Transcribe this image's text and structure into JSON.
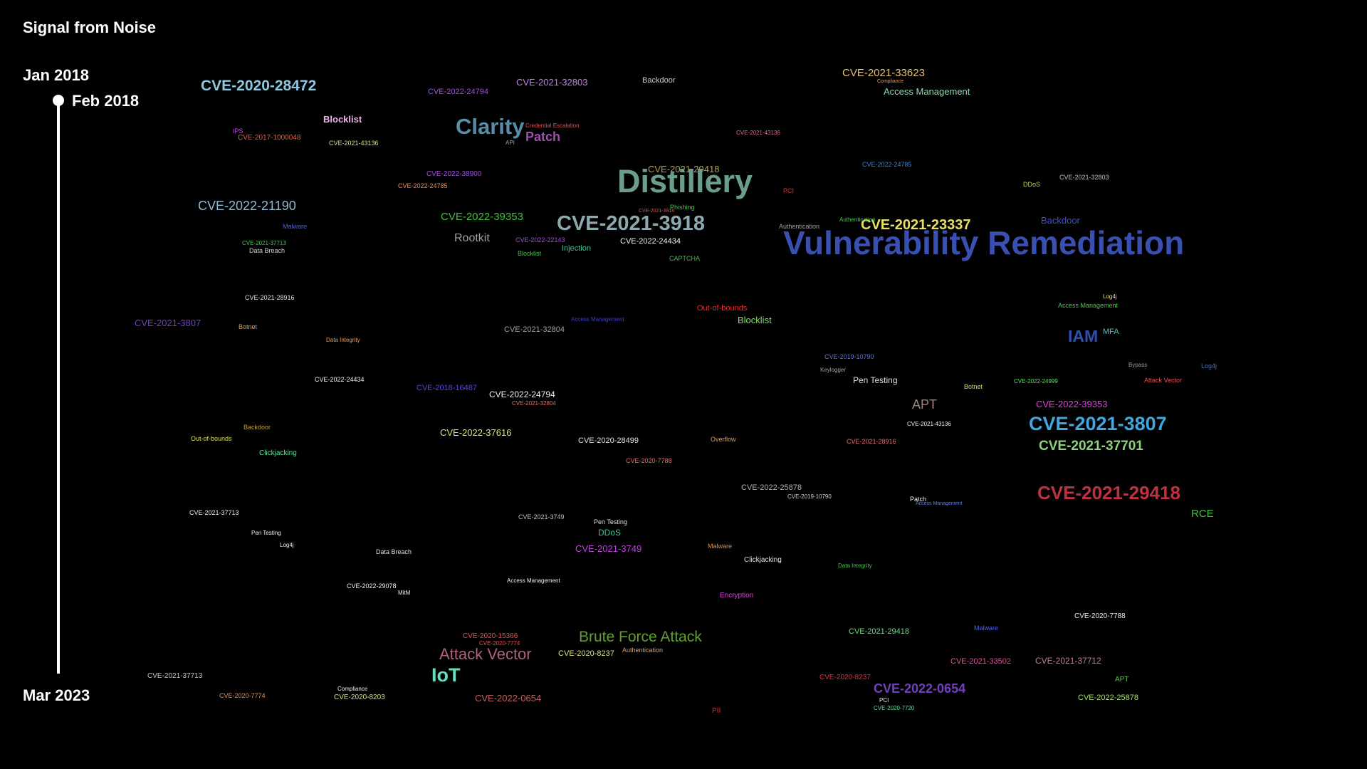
{
  "app_title": "Signal from Noise",
  "timeline": {
    "range_start": "Jan 2018",
    "selected": "Feb 2018",
    "range_end": "Mar 2023"
  },
  "terms": [
    {
      "text": "CVE-2020-28472",
      "color": "#8ec8e0"
    },
    {
      "text": "CVE-2022-24794",
      "color": "#a050e0"
    },
    {
      "text": "CVE-2021-32803",
      "color": "#c080e0"
    },
    {
      "text": "Backdoor",
      "color": "#c8c8c8"
    },
    {
      "text": "CVE-2021-33623",
      "color": "#e8c070"
    },
    {
      "text": "Access Management",
      "color": "#90d8b0"
    },
    {
      "text": "Blocklist",
      "color": "#f0b0f0"
    },
    {
      "text": "Clarity",
      "color": "#5a8ea8"
    },
    {
      "text": "Patch",
      "color": "#a050b0"
    },
    {
      "text": "Credential Escalation",
      "color": "#e05050"
    },
    {
      "text": "IPS",
      "color": "#c050e0"
    },
    {
      "text": "CVE-2017-1000048",
      "color": "#e06040"
    },
    {
      "text": "CVE-2021-43136",
      "color": "#e0e080"
    },
    {
      "text": "CVE-2021-43136",
      "color": "#e07090"
    },
    {
      "text": "CVE-2022-38900",
      "color": "#a050e0"
    },
    {
      "text": "CVE-2021-29418",
      "color": "#b0a050"
    },
    {
      "text": "Distillery",
      "color": "#6a9e8a"
    },
    {
      "text": "CVE-2022-24785",
      "color": "#e09060"
    },
    {
      "text": "CVE-2022-24785",
      "color": "#4080c0"
    },
    {
      "text": "DDoS",
      "color": "#c0d060"
    },
    {
      "text": "CVE-2021-32803",
      "color": "#c0c0c0"
    },
    {
      "text": "CVE-2022-21190",
      "color": "#90b8d0"
    },
    {
      "text": "CVE-2022-39353",
      "color": "#40c040"
    },
    {
      "text": "Phishing",
      "color": "#40c040"
    },
    {
      "text": "CVE-2021-3918",
      "color": "#8ea8b0"
    },
    {
      "text": "CVE-2021-23337",
      "color": "#e8e060"
    },
    {
      "text": "Backdoor",
      "color": "#4050c0"
    },
    {
      "text": "Vulnerability Remediation",
      "color": "#3a50b0"
    },
    {
      "text": "Malware",
      "color": "#5060c0"
    },
    {
      "text": "Rootkit",
      "color": "#a0a0a0"
    },
    {
      "text": "CVE-2022-22143",
      "color": "#a050e0"
    },
    {
      "text": "CVE-2022-24434",
      "color": "#f0f0f0"
    },
    {
      "text": "Authentication",
      "color": "#a0a0a0"
    },
    {
      "text": "CVE-2021-37713",
      "color": "#50c050"
    },
    {
      "text": "Data Breach",
      "color": "#d0d0d0"
    },
    {
      "text": "Blocklist",
      "color": "#50c050"
    },
    {
      "text": "Injection",
      "color": "#40c0a0"
    },
    {
      "text": "CAPTCHA",
      "color": "#40c040"
    },
    {
      "text": "CVE-2021-28916",
      "color": "#e0e0e0"
    },
    {
      "text": "Log4j",
      "color": "#f0e080"
    },
    {
      "text": "Access Management",
      "color": "#50c050"
    },
    {
      "text": "CVE-2021-3807",
      "color": "#7040c0"
    },
    {
      "text": "Botnet",
      "color": "#e0a060"
    },
    {
      "text": "Data Integrity",
      "color": "#e0a060"
    },
    {
      "text": "CVE-2021-32804",
      "color": "#a0a0a0"
    },
    {
      "text": "Access Management",
      "color": "#4040c0"
    },
    {
      "text": "Out-of-bounds",
      "color": "#e03030"
    },
    {
      "text": "Blocklist",
      "color": "#80e060"
    },
    {
      "text": "IAM",
      "color": "#3050b0"
    },
    {
      "text": "MFA",
      "color": "#60c0c0"
    },
    {
      "text": "Log4j",
      "color": "#5070c0"
    },
    {
      "text": "CVE-2019-10790",
      "color": "#6070e0"
    },
    {
      "text": "Keylogger",
      "color": "#a0a0a0"
    },
    {
      "text": "Pen Testing",
      "color": "#e0e0e0"
    },
    {
      "text": "Bypass",
      "color": "#a0a0a0"
    },
    {
      "text": "Attack Vector",
      "color": "#e05050"
    },
    {
      "text": "CVE-2022-24434",
      "color": "#f0f0f0"
    },
    {
      "text": "CVE-2018-16487",
      "color": "#6040e0"
    },
    {
      "text": "CVE-2022-24794",
      "color": "#f0f0f0"
    },
    {
      "text": "CVE-2021-32804",
      "color": "#e07070"
    },
    {
      "text": "Botnet",
      "color": "#c0e060"
    },
    {
      "text": "CVE-2022-24999",
      "color": "#60e060"
    },
    {
      "text": "APT",
      "color": "#a08080"
    },
    {
      "text": "CVE-2022-39353",
      "color": "#e040e0"
    },
    {
      "text": "Backdoor",
      "color": "#c0a040"
    },
    {
      "text": "Out-of-bounds",
      "color": "#e0e060"
    },
    {
      "text": "Clickjacking",
      "color": "#60e0a0"
    },
    {
      "text": "CVE-2022-37616",
      "color": "#e0e080"
    },
    {
      "text": "CVE-2020-28499",
      "color": "#e0e0e0"
    },
    {
      "text": "Overflow",
      "color": "#e0a060"
    },
    {
      "text": "CVE-2021-43136",
      "color": "#f0f0f0"
    },
    {
      "text": "CVE-2021-28916",
      "color": "#e07070"
    },
    {
      "text": "CVE-2021-3807",
      "color": "#40a8e0"
    },
    {
      "text": "CVE-2021-37701",
      "color": "#90d080"
    },
    {
      "text": "CVE-2020-7788",
      "color": "#e07070"
    },
    {
      "text": "CVE-2022-25878",
      "color": "#b0b0b0"
    },
    {
      "text": "CVE-2019-10790",
      "color": "#d0d0d0"
    },
    {
      "text": "Patch",
      "color": "#f0f0f0"
    },
    {
      "text": "Access Management",
      "color": "#6080e0"
    },
    {
      "text": "CVE-2021-29418",
      "color": "#c03040"
    },
    {
      "text": "RCE",
      "color": "#40c040"
    },
    {
      "text": "CVE-2021-37713",
      "color": "#f0f0f0"
    },
    {
      "text": "Pen Testing",
      "color": "#f0f0f0"
    },
    {
      "text": "Log4j",
      "color": "#f0f0f0"
    },
    {
      "text": "Data Breach",
      "color": "#e0e0e0"
    },
    {
      "text": "CVE-2021-3749",
      "color": "#c0c0c0"
    },
    {
      "text": "Pen Testing",
      "color": "#e0e0e0"
    },
    {
      "text": "DDoS",
      "color": "#40c0a0"
    },
    {
      "text": "CVE-2021-3749",
      "color": "#c040e0"
    },
    {
      "text": "Malware",
      "color": "#e09030"
    },
    {
      "text": "Clickjacking",
      "color": "#e0e0e0"
    },
    {
      "text": "Data Integrity",
      "color": "#50c050"
    },
    {
      "text": "CVE-2022-29078",
      "color": "#f0f0f0"
    },
    {
      "text": "MitM",
      "color": "#f0f0f0"
    },
    {
      "text": "Access Management",
      "color": "#f0f0f0"
    },
    {
      "text": "Encryption",
      "color": "#e040e0"
    },
    {
      "text": "CVE-2020-15366",
      "color": "#e05050"
    },
    {
      "text": "CVE-2020-7774",
      "color": "#e05050"
    },
    {
      "text": "Brute Force Attack",
      "color": "#60a030"
    },
    {
      "text": "Authentication",
      "color": "#e0a060"
    },
    {
      "text": "CVE-2021-29418",
      "color": "#60e080"
    },
    {
      "text": "Malware",
      "color": "#5060e0"
    },
    {
      "text": "CVE-2020-7788",
      "color": "#f0f0f0"
    },
    {
      "text": "CVE-2020-8237",
      "color": "#e0e080"
    },
    {
      "text": "Attack Vector",
      "color": "#b06080"
    },
    {
      "text": "CVE-2021-33502",
      "color": "#e050a0"
    },
    {
      "text": "CVE-2021-37712",
      "color": "#c08080"
    },
    {
      "text": "IoT",
      "color": "#60e0c0"
    },
    {
      "text": "CVE-2021-37713",
      "color": "#c0c0c0"
    },
    {
      "text": "CVE-2020-8237",
      "color": "#e03040"
    },
    {
      "text": "APT",
      "color": "#60c060"
    },
    {
      "text": "CVE-2022-0654",
      "color": "#7040c0"
    },
    {
      "text": "PCI",
      "color": "#f0f0f0"
    },
    {
      "text": "CVE-2020-7720",
      "color": "#60e0a0"
    },
    {
      "text": "CVE-2022-25878",
      "color": "#a0e060"
    },
    {
      "text": "CVE-2020-7774",
      "color": "#e09060"
    },
    {
      "text": "Compliance",
      "color": "#f0f0f0"
    },
    {
      "text": "CVE-2020-8203",
      "color": "#e0e080"
    },
    {
      "text": "CVE-2022-0654",
      "color": "#c06060"
    },
    {
      "text": "PII",
      "color": "#e03030"
    },
    {
      "text": "Compliance",
      "color": "#e0a060"
    },
    {
      "text": "API",
      "color": "#a0a0a0"
    },
    {
      "text": "PCI",
      "color": "#e03030"
    },
    {
      "text": "Authentication",
      "color": "#50c050"
    },
    {
      "text": "CVE-2021-3918",
      "color": "#e05050"
    }
  ]
}
